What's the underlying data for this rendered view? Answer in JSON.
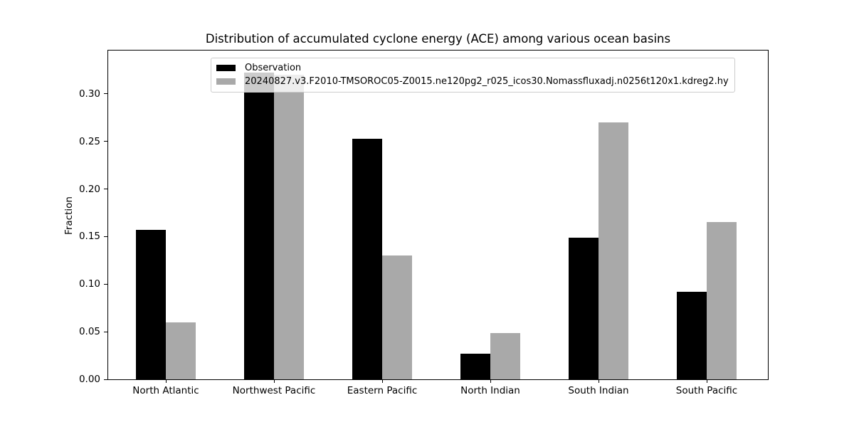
{
  "chart_data": {
    "type": "bar",
    "title": "Distribution of accumulated cyclone energy (ACE) among various ocean basins",
    "xlabel": "",
    "ylabel": "Fraction",
    "categories": [
      "North Atlantic",
      "Northwest Pacific",
      "Eastern Pacific",
      "North Indian",
      "South Indian",
      "South Pacific"
    ],
    "series": [
      {
        "name": "Observation",
        "color": "#000000",
        "values": [
          0.157,
          0.322,
          0.253,
          0.027,
          0.149,
          0.092
        ]
      },
      {
        "name": "20240827.v3.F2010-TMSOROC05-Z0015.ne120pg2_r025_icos30.Nomassfluxadj.n0256t120x1.kdreg2.hy",
        "color": "#a9a9a9",
        "values": [
          0.06,
          0.32,
          0.13,
          0.049,
          0.27,
          0.165
        ]
      }
    ],
    "yticks": [
      0.0,
      0.05,
      0.1,
      0.15,
      0.2,
      0.25,
      0.3
    ],
    "ytick_labels": [
      "0.00",
      "0.05",
      "0.10",
      "0.15",
      "0.20",
      "0.25",
      "0.30"
    ],
    "ylim": [
      0,
      0.3454
    ],
    "grid": false,
    "legend_position": "upper center, inside plot",
    "bar_color_note": "Observation bars black, model bars darkgray"
  }
}
